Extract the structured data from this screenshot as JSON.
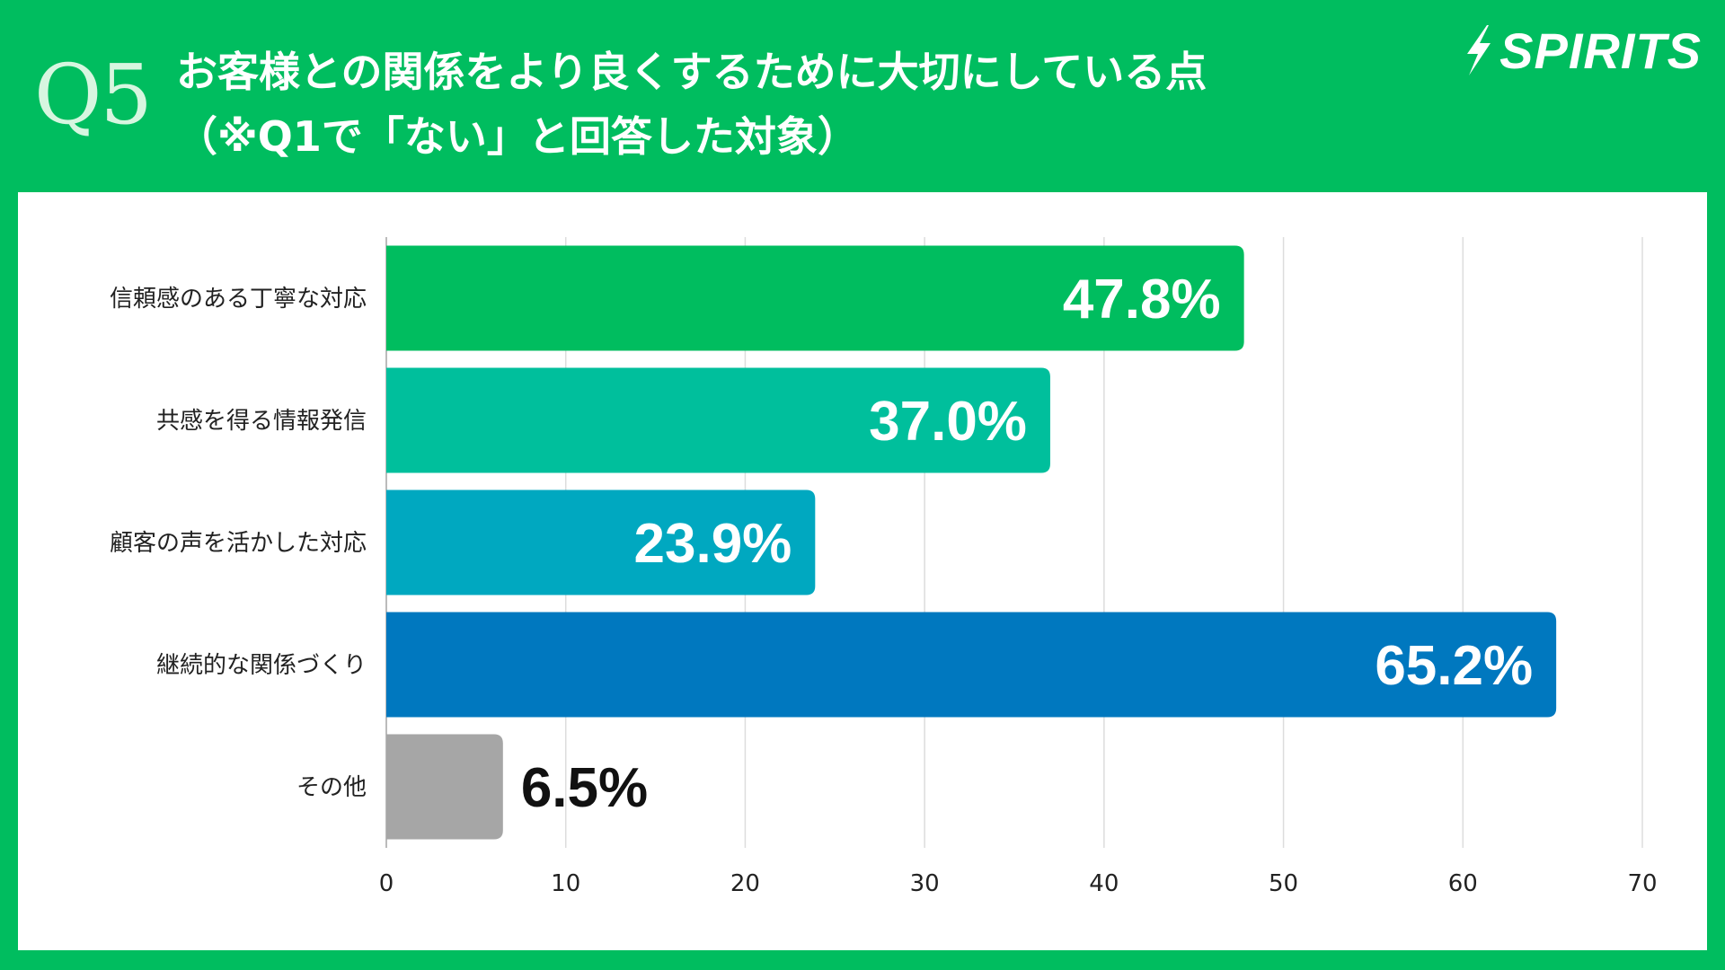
{
  "header": {
    "question_number": "Q5",
    "title_line1": "お客様との関係をより良くするために大切にしている点",
    "title_line2": "（※Q1で「ない」と回答した対象）",
    "brand": "SPIRITS"
  },
  "colors": {
    "background": "#00bd5f",
    "card": "#ffffff",
    "grid": "#dddddd",
    "axis": "#bbbbbb"
  },
  "chart_data": {
    "type": "bar",
    "orientation": "horizontal",
    "categories": [
      "信頼感のある丁寧な対応",
      "共感を得る情報発信",
      "顧客の声を活かした対応",
      "継続的な関係づくり",
      "その他"
    ],
    "values": [
      47.8,
      37.0,
      23.9,
      65.2,
      6.5
    ],
    "value_labels": [
      "47.8%",
      "37.0%",
      "23.9%",
      "65.2%",
      "6.5%"
    ],
    "bar_colors": [
      "#00bd5f",
      "#00bf9c",
      "#00a8c0",
      "#0078bf",
      "#a6a6a6"
    ],
    "label_inside": [
      true,
      true,
      true,
      true,
      false
    ],
    "xlim": [
      0,
      70
    ],
    "xticks": [
      0,
      10,
      20,
      30,
      40,
      50,
      60,
      70
    ],
    "xtick_labels": [
      "0",
      "10",
      "20",
      "30",
      "40",
      "50",
      "60",
      "70"
    ],
    "grid": true,
    "title": "",
    "xlabel": "",
    "ylabel": ""
  }
}
